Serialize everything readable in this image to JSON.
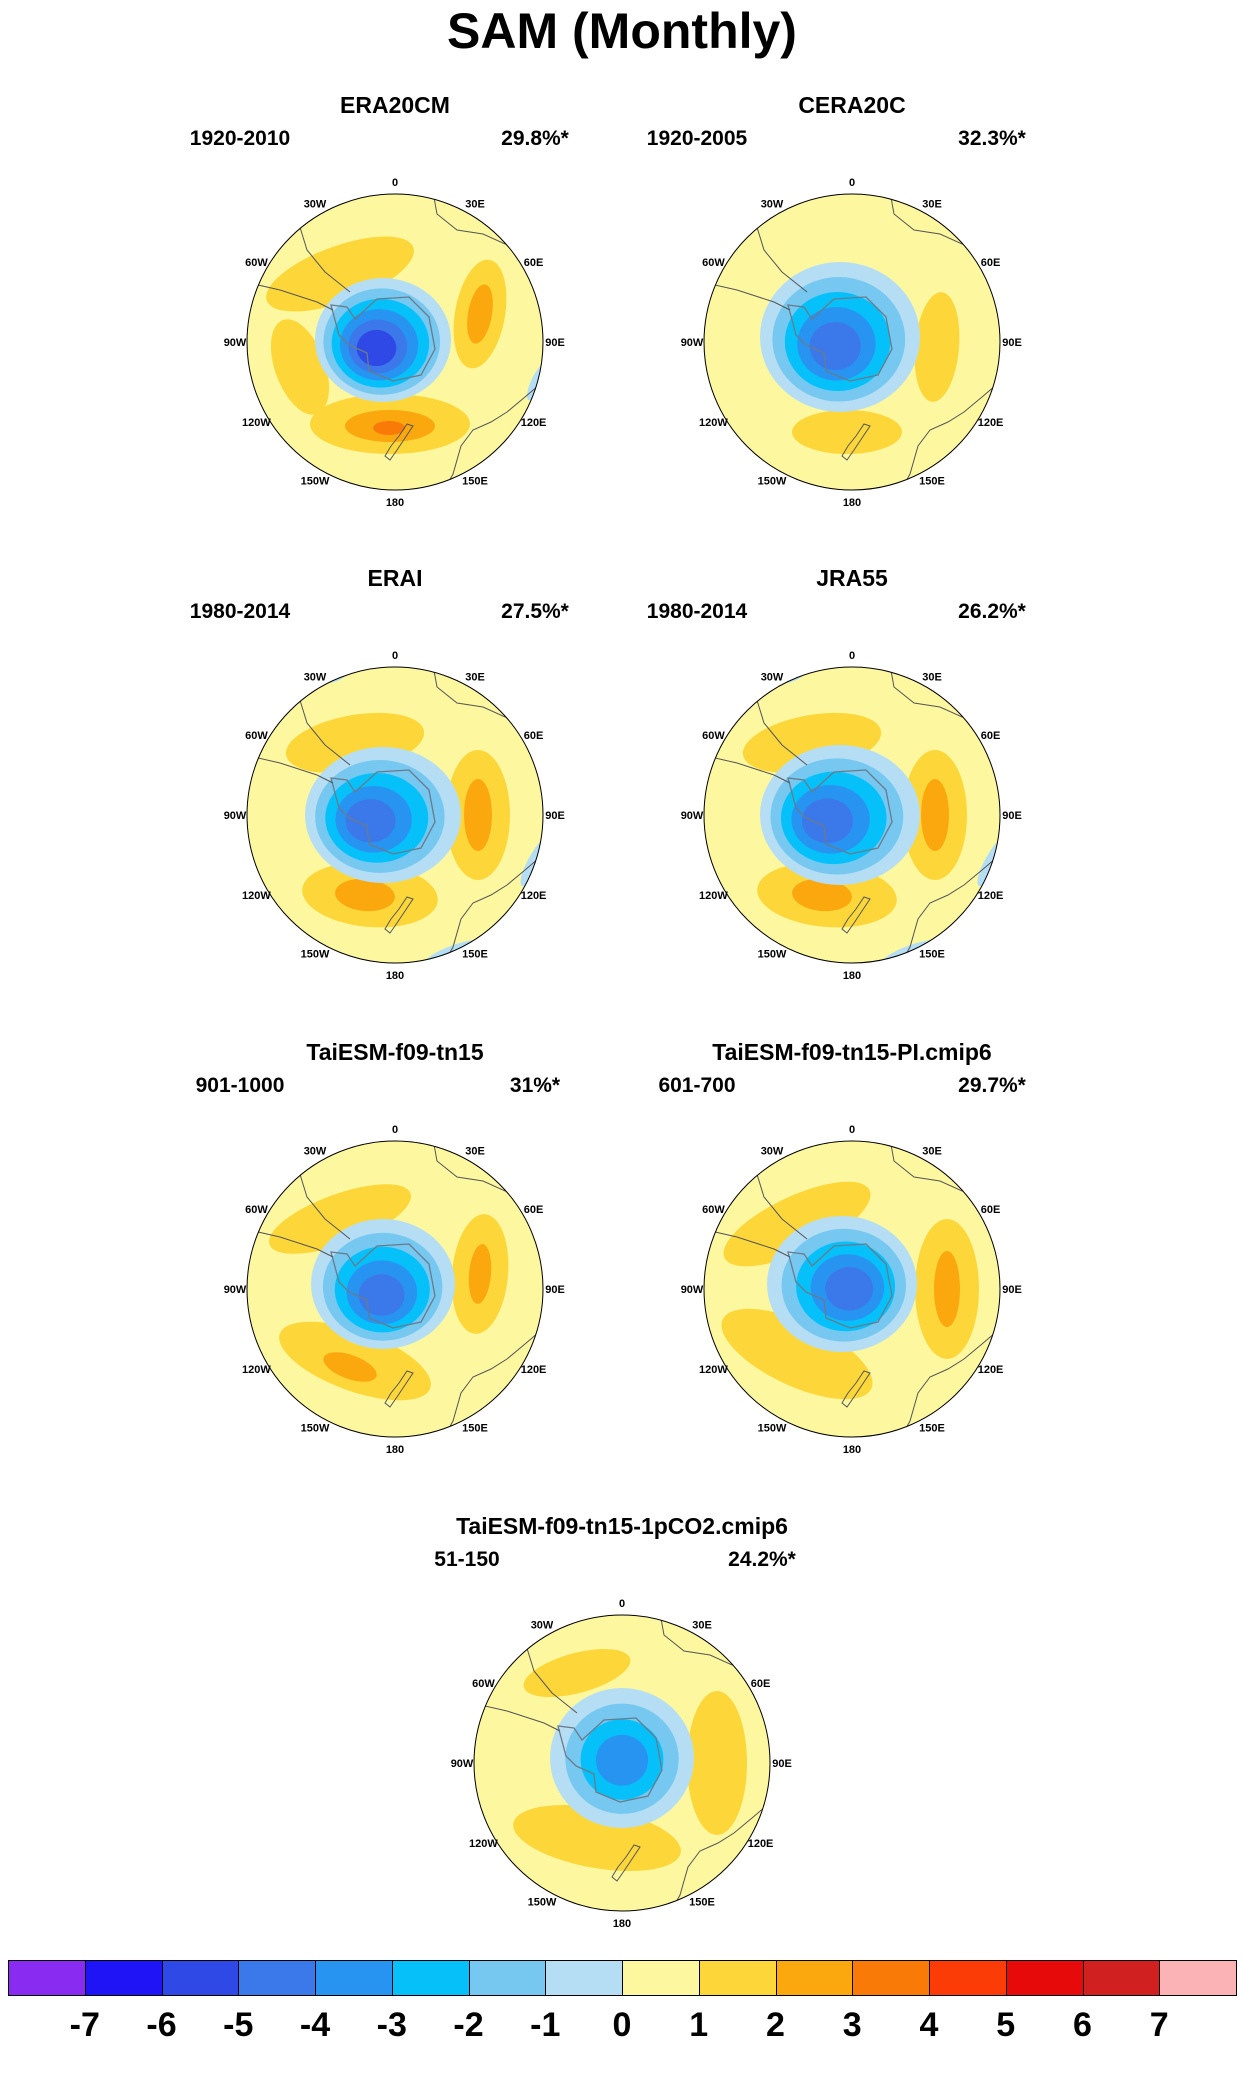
{
  "title": "SAM (Monthly)",
  "panels": [
    {
      "name": "ERA20CM",
      "period": "1920-2010",
      "pct": "29.8%*",
      "variant": "era20cm"
    },
    {
      "name": "CERA20C",
      "period": "1920-2005",
      "pct": "32.3%*",
      "variant": "cera20c"
    },
    {
      "name": "ERAI",
      "period": "1980-2014",
      "pct": "27.5%*",
      "variant": "erai"
    },
    {
      "name": "JRA55",
      "period": "1980-2014",
      "pct": "26.2%*",
      "variant": "jra55"
    },
    {
      "name": "TaiESM-f09-tn15",
      "period": "901-1000",
      "pct": "31%*",
      "variant": "taiesm"
    },
    {
      "name": "TaiESM-f09-tn15-PI.cmip6",
      "period": "601-700",
      "pct": "29.7%*",
      "variant": "pi"
    },
    {
      "name": "TaiESM-f09-tn15-1pCO2.cmip6",
      "period": "51-150",
      "pct": "24.2%*",
      "variant": "co2"
    }
  ],
  "longitude_labels": [
    "0",
    "30E",
    "60E",
    "90E",
    "120E",
    "150E",
    "180",
    "150W",
    "120W",
    "90W",
    "60W",
    "30W"
  ],
  "colorbar": {
    "colors": [
      "#8a2bf2",
      "#1e14f5",
      "#2f49e6",
      "#3b79ea",
      "#2894f2",
      "#06c0fa",
      "#76c8f0",
      "#b5def4",
      "#fdf7a0",
      "#fdd73a",
      "#fba80f",
      "#fa7a08",
      "#fc3c06",
      "#e70a0a",
      "#d02020",
      "#fbb3b6"
    ],
    "labels": [
      "-7",
      "-6",
      "-5",
      "-4",
      "-3",
      "-2",
      "-1",
      "0",
      "1",
      "2",
      "3",
      "4",
      "5",
      "6",
      "7"
    ]
  }
}
